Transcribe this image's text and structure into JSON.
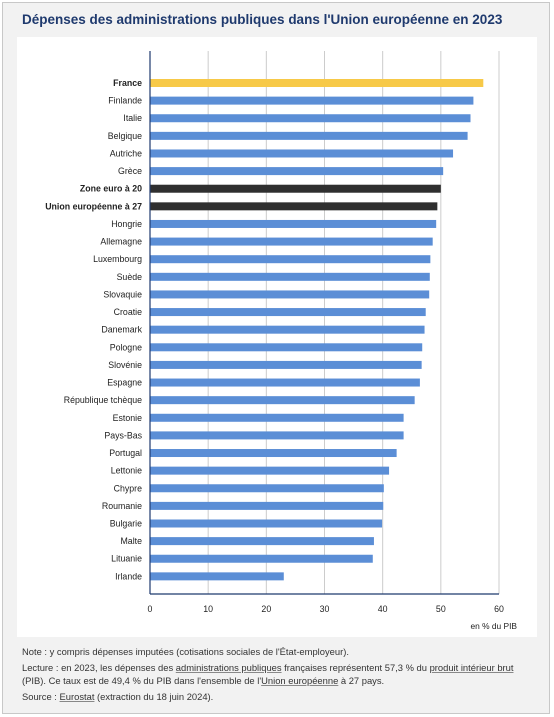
{
  "title": "Dépenses des administrations publiques dans l'Union européenne en 2023",
  "chart_data": {
    "type": "bar",
    "orientation": "horizontal",
    "categories": [
      "France",
      "Finlande",
      "Italie",
      "Belgique",
      "Autriche",
      "Grèce",
      "Zone euro à 20",
      "Union européenne à 27",
      "Hongrie",
      "Allemagne",
      "Luxembourg",
      "Suède",
      "Slovaquie",
      "Croatie",
      "Danemark",
      "Pologne",
      "Slovénie",
      "Espagne",
      "République tchèque",
      "Estonie",
      "Pays-Bas",
      "Portugal",
      "Lettonie",
      "Chypre",
      "Roumanie",
      "Bulgarie",
      "Malte",
      "Lituanie",
      "Irlande"
    ],
    "values": [
      57.3,
      55.6,
      55.1,
      54.6,
      52.1,
      50.4,
      50.0,
      49.4,
      49.2,
      48.6,
      48.2,
      48.1,
      48.0,
      47.4,
      47.2,
      46.8,
      46.7,
      46.4,
      45.5,
      43.6,
      43.6,
      42.4,
      41.1,
      40.2,
      40.1,
      39.9,
      38.5,
      38.3,
      23.0
    ],
    "highlight": {
      "France": "#f7c948",
      "Zone euro à 20": "#2f2f2f",
      "Union européenne à 27": "#2f2f2f"
    },
    "bold_categories": [
      "France",
      "Zone euro à 20",
      "Union européenne à 27"
    ],
    "bar_color": "#5b8ed6",
    "xlim": [
      0,
      60
    ],
    "xticks": [
      0,
      10,
      20,
      30,
      40,
      50,
      60
    ],
    "xlabel": "en % du PIB",
    "grid": true
  },
  "notes": {
    "note": "Note : y compris dépenses imputées (cotisations sociales de l'État-employeur).",
    "lecture_1": "Lecture : en 2023, les dépenses des ",
    "lecture_link_1": "administrations publiques",
    "lecture_2": " françaises représentent 57,3 % du ",
    "lecture_link_2": "produit intérieur brut",
    "lecture_3": " (PIB). Ce taux est de 49,4 % du PIB dans l'ensemble de l'",
    "lecture_link_3": "Union européenne",
    "lecture_4": " à 27 pays.",
    "source_1": "Source : ",
    "source_link": "Eurostat",
    "source_2": " (extraction du 18 juin 2024)."
  }
}
